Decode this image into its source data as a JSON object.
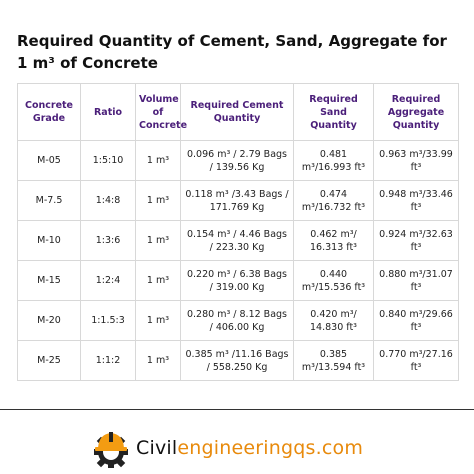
{
  "title": "Required Quantity of Cement, Sand, Aggregate for 1 m³ of Concrete",
  "table": {
    "header": [
      "Concrete Grade",
      "Ratio",
      "Volume of Concrete",
      "Required Cement Quantity",
      "Required Sand Quantity",
      "Required Aggregate Quantity"
    ],
    "rows": [
      [
        "M-05",
        "1:5:10",
        "1 m³",
        "0.096 m³ / 2.79 Bags / 139.56 Kg",
        "0.481 m³/16.993 ft³",
        "0.963 m³/33.99 ft³"
      ],
      [
        "M-7.5",
        "1:4:8",
        "1 m³",
        "0.118 m³ /3.43 Bags / 171.769 Kg",
        "0.474 m³/16.732 ft³",
        "0.948 m³/33.46 ft³"
      ],
      [
        "M-10",
        "1:3:6",
        "1 m³",
        "0.154 m³ / 4.46 Bags / 223.30 Kg",
        "0.462 m³/ 16.313 ft³",
        "0.924 m³/32.63 ft³"
      ],
      [
        "M-15",
        "1:2:4",
        "1 m³",
        "0.220 m³ / 6.38 Bags / 319.00 Kg",
        "0.440 m³/15.536 ft³",
        "0.880 m³/31.07 ft³"
      ],
      [
        "M-20",
        "1:1.5:3",
        "1 m³",
        "0.280 m³ / 8.12 Bags / 406.00 Kg",
        "0.420 m³/ 14.830 ft³",
        "0.840 m³/29.66 ft³"
      ],
      [
        "M-25",
        "1:1:2",
        "1 m³",
        "0.385 m³ /11.16 Bags / 558.250 Kg",
        "0.385 m³/13.594 ft³",
        "0.770 m³/27.16 ft³"
      ]
    ]
  },
  "logo": {
    "part1": "Civil",
    "part2": "engineeringqs.com"
  }
}
